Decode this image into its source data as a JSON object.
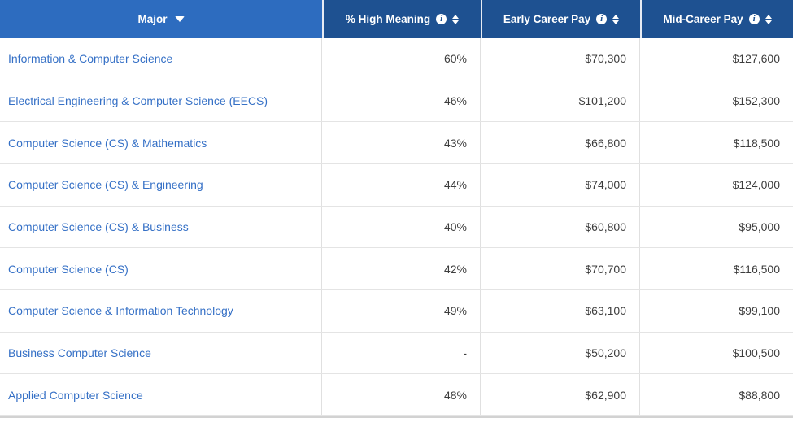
{
  "table": {
    "columns": [
      {
        "label": "Major",
        "sorted": "desc",
        "has_info": false
      },
      {
        "label": "% High Meaning",
        "has_info": true
      },
      {
        "label": "Early Career Pay",
        "has_info": true
      },
      {
        "label": "Mid-Career Pay",
        "has_info": true
      }
    ],
    "rows": [
      {
        "major": "Information & Computer Science",
        "high_meaning": "60%",
        "early_career_pay": "$70,300",
        "mid_career_pay": "$127,600"
      },
      {
        "major": "Electrical Engineering & Computer Science (EECS)",
        "high_meaning": "46%",
        "early_career_pay": "$101,200",
        "mid_career_pay": "$152,300"
      },
      {
        "major": "Computer Science (CS) & Mathematics",
        "high_meaning": "43%",
        "early_career_pay": "$66,800",
        "mid_career_pay": "$118,500"
      },
      {
        "major": "Computer Science (CS) & Engineering",
        "high_meaning": "44%",
        "early_career_pay": "$74,000",
        "mid_career_pay": "$124,000"
      },
      {
        "major": "Computer Science (CS) & Business",
        "high_meaning": "40%",
        "early_career_pay": "$60,800",
        "mid_career_pay": "$95,000"
      },
      {
        "major": "Computer Science (CS)",
        "high_meaning": "42%",
        "early_career_pay": "$70,700",
        "mid_career_pay": "$116,500"
      },
      {
        "major": "Computer Science & Information Technology",
        "high_meaning": "49%",
        "early_career_pay": "$63,100",
        "mid_career_pay": "$99,100"
      },
      {
        "major": "Business Computer Science",
        "high_meaning": "-",
        "early_career_pay": "$50,200",
        "mid_career_pay": "$100,500"
      },
      {
        "major": "Applied Computer Science",
        "high_meaning": "48%",
        "early_career_pay": "$62,900",
        "mid_career_pay": "$88,800"
      }
    ],
    "colors": {
      "header_major_bg": "#2d6cbf",
      "header_bg": "#1e5191",
      "link_blue": "#3570c6",
      "value_text": "#3d3d3d",
      "row_border": "#e4e4e4",
      "column_border": "#e0e0e0"
    },
    "info_icon_glyph": "i"
  }
}
